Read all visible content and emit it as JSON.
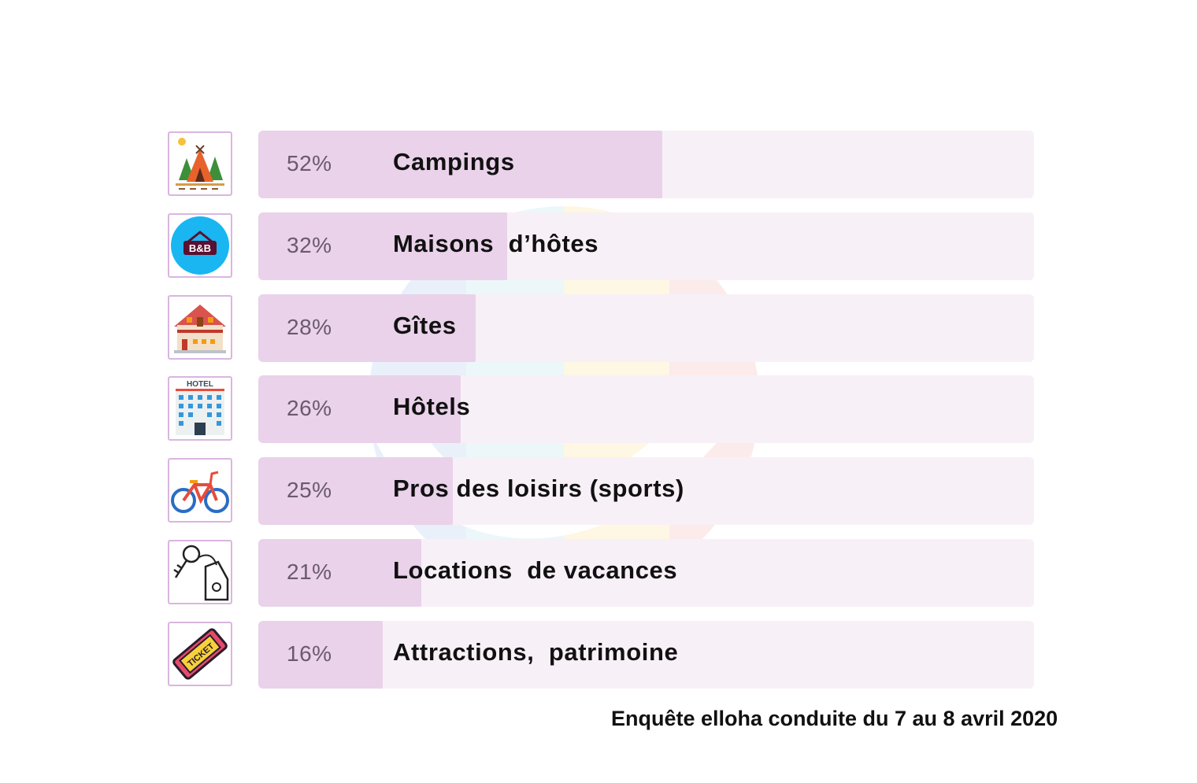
{
  "chart_data": {
    "type": "bar",
    "orientation": "horizontal",
    "categories": [
      "Campings",
      "Maisons  d’hôtes",
      "Gîtes",
      "Hôtels",
      "Pros des loisirs (sports)",
      "Locations  de vacances",
      "Attractions,  patrimoine"
    ],
    "values": [
      52,
      32,
      28,
      26,
      25,
      21,
      16
    ],
    "value_labels": [
      "52%",
      "32%",
      "28%",
      "26%",
      "25%",
      "21%",
      "16%"
    ],
    "icons": [
      "tent-icon",
      "bed-and-breakfast-icon",
      "cottage-icon",
      "hotel-icon",
      "bicycle-icon",
      "key-tag-icon",
      "ticket-icon"
    ],
    "xlim": [
      0,
      100
    ],
    "title": "",
    "xlabel": "",
    "ylabel": "",
    "grid": false,
    "legend": "none",
    "colors": {
      "fill": "#e9d2ea",
      "track": "#f8f0f7",
      "icon_border": "#d9b6df"
    }
  },
  "footnote": "Enquête elloha conduite du 7 au 8 avril 2020"
}
